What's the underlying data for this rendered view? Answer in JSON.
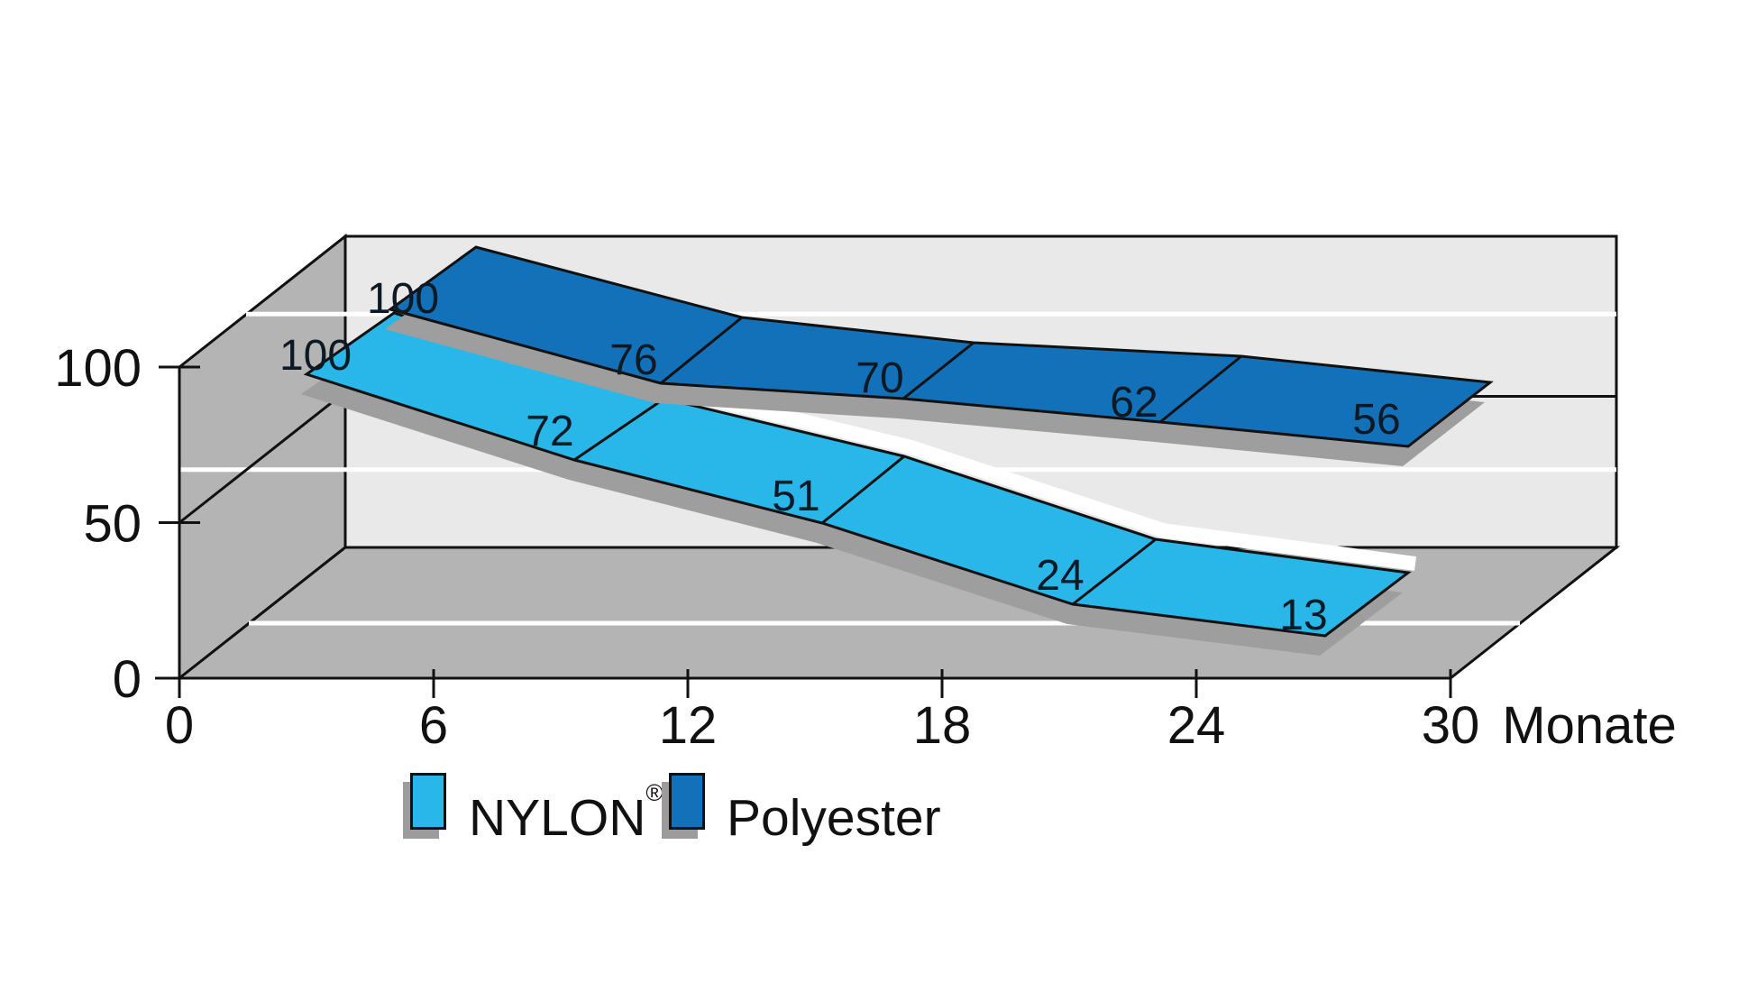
{
  "chart_data": {
    "type": "line",
    "style": "3d-ribbon",
    "x": [
      0,
      6,
      12,
      18,
      24
    ],
    "x_axis_ticks": [
      0,
      6,
      12,
      18,
      24,
      30
    ],
    "xlabel": "Monate",
    "y_ticks": [
      0,
      50,
      100
    ],
    "ylim": [
      0,
      100
    ],
    "grid": true,
    "legend_position": "bottom",
    "series": [
      {
        "name": "NYLON",
        "trademark": "®",
        "color": "#29b7e9",
        "values": [
          100,
          72,
          51,
          24,
          13
        ]
      },
      {
        "name": "Polyester",
        "trademark": "",
        "color": "#1271b8",
        "values": [
          100,
          76,
          70,
          62,
          56
        ]
      }
    ]
  },
  "legend": {
    "items": [
      {
        "label": "NYLON",
        "sup": "®"
      },
      {
        "label": "Polyester",
        "sup": ""
      }
    ]
  },
  "colors": {
    "nylon": "#29b7e9",
    "polyester": "#1271b8",
    "wall_side": "#b4b4b4",
    "wall_back": "#e9e9e9",
    "floor": "#b4b4b4",
    "shadow": "#9e9e9e",
    "outline": "#111111",
    "gridline_white": "#ffffff",
    "text": "#111111"
  }
}
